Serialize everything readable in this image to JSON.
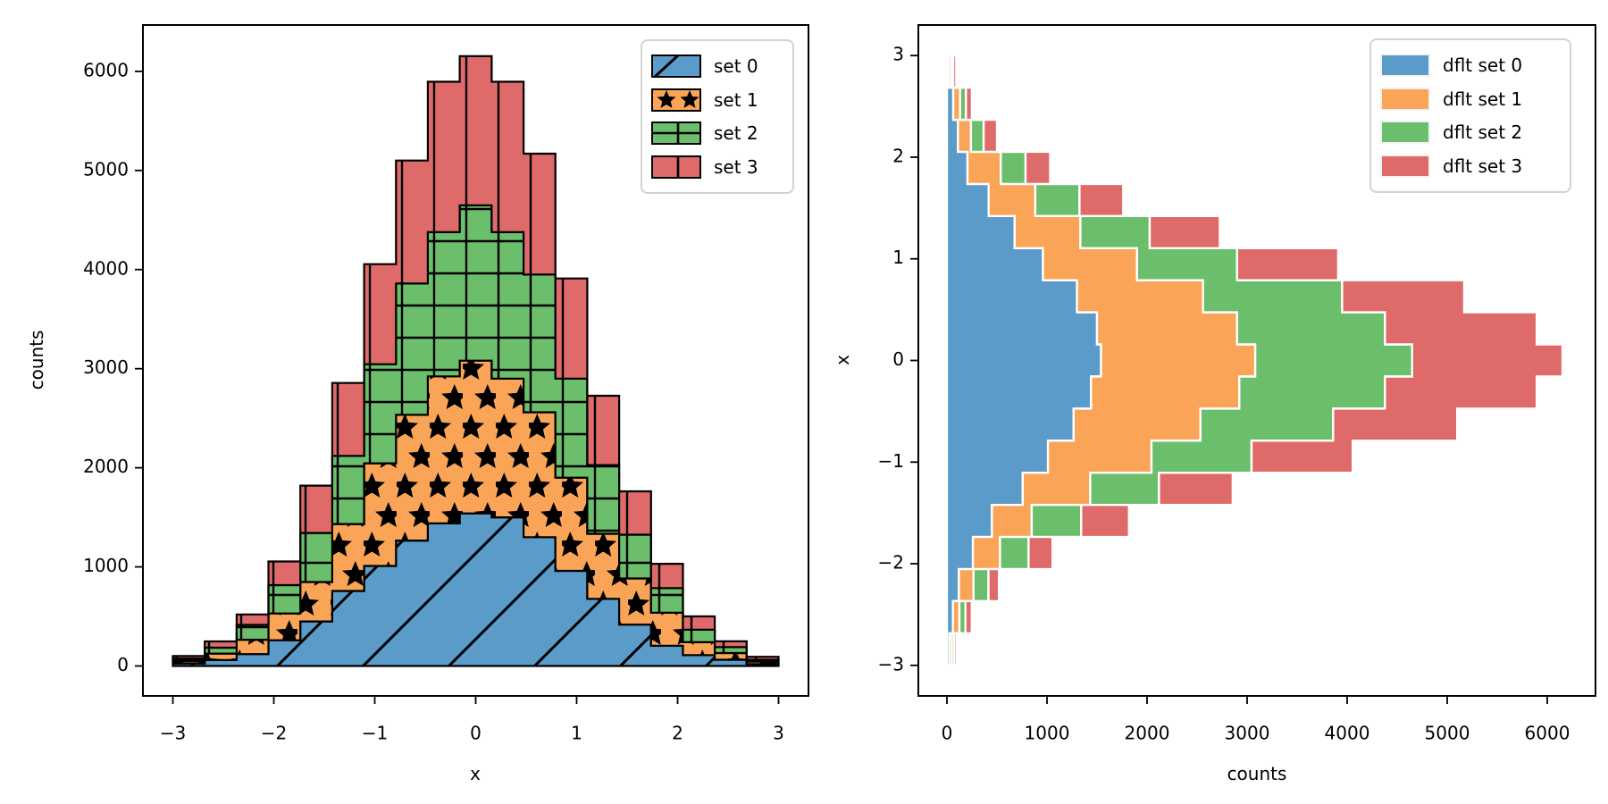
{
  "figure": {
    "background": "#ffffff"
  },
  "chart_data": [
    {
      "type": "bar",
      "subtype": "stacked-step-histogram",
      "orientation": "vertical",
      "title": "",
      "xlabel": "x",
      "ylabel": "counts",
      "grid": false,
      "xlim": [
        -3.3,
        3.3
      ],
      "ylim": [
        -302,
        6468
      ],
      "bin_edges": [
        -3.0,
        -2.684,
        -2.368,
        -2.053,
        -1.737,
        -1.421,
        -1.105,
        -0.789,
        -0.474,
        -0.158,
        0.158,
        0.474,
        0.789,
        1.105,
        1.421,
        1.737,
        2.053,
        2.368,
        2.684,
        3.0
      ],
      "xticks": {
        "values": [
          -3,
          -2,
          -1,
          0,
          1,
          2,
          3
        ],
        "labels": [
          "−3",
          "−2",
          "−1",
          "0",
          "1",
          "2",
          "3"
        ]
      },
      "yticks": {
        "values": [
          0,
          1000,
          2000,
          3000,
          4000,
          5000,
          6000
        ],
        "labels": [
          "0",
          "1000",
          "2000",
          "3000",
          "4000",
          "5000",
          "6000"
        ]
      },
      "edge_color": "#000000",
      "legend": {
        "position": "upper right",
        "labels": [
          "set 0",
          "set 1",
          "set 2",
          "set 3"
        ]
      },
      "series": [
        {
          "name": "set 0",
          "color": "#5B9BC9",
          "hatch": "/",
          "values": [
            25,
            60,
            120,
            260,
            450,
            757,
            1010,
            1266,
            1440,
            1540,
            1500,
            1300,
            960,
            677,
            417,
            205,
            110,
            63,
            20
          ]
        },
        {
          "name": "set 1",
          "color": "#FAA458",
          "hatch": "*",
          "values": [
            25,
            65,
            145,
            270,
            397,
            675,
            1035,
            1268,
            1482,
            1541,
            1400,
            1260,
            940,
            657,
            466,
            333,
            130,
            68,
            25
          ]
        },
        {
          "name": "set 2",
          "color": "#6BBE6B",
          "hatch": "+",
          "values": [
            25,
            60,
            150,
            286,
            495,
            688,
            1000,
            1326,
            1456,
            1568,
            1478,
            1390,
            1000,
            693,
            442,
            248,
            127,
            59,
            18
          ]
        },
        {
          "name": "set 3",
          "color": "#DF6A6A",
          "hatch": "|",
          "values": [
            25,
            63,
            105,
            239,
            478,
            736,
            1010,
            1240,
            1517,
            1504,
            1517,
            1220,
            1010,
            700,
            437,
            245,
            133,
            59,
            30
          ]
        }
      ]
    },
    {
      "type": "bar",
      "subtype": "stacked-step-histogram",
      "orientation": "horizontal",
      "title": "",
      "xlabel": "counts",
      "ylabel": "x",
      "grid": false,
      "xlim": [
        -286,
        6482
      ],
      "ylim": [
        -3.3,
        3.3
      ],
      "bin_edges": [
        -3.0,
        -2.684,
        -2.368,
        -2.053,
        -1.737,
        -1.421,
        -1.105,
        -0.789,
        -0.474,
        -0.158,
        0.158,
        0.474,
        0.789,
        1.105,
        1.421,
        1.737,
        2.053,
        2.368,
        2.684,
        3.0
      ],
      "xticks": {
        "values": [
          0,
          1000,
          2000,
          3000,
          4000,
          5000,
          6000
        ],
        "labels": [
          "0",
          "1000",
          "2000",
          "3000",
          "4000",
          "5000",
          "6000"
        ]
      },
      "yticks": {
        "values": [
          -3,
          -2,
          -1,
          0,
          1,
          2,
          3
        ],
        "labels": [
          "−3",
          "−2",
          "−1",
          "0",
          "1",
          "2",
          "3"
        ]
      },
      "edge_color": "#ffffff",
      "legend": {
        "position": "upper right",
        "labels": [
          "dflt set 0",
          "dflt set 1",
          "dflt set 2",
          "dflt set 3"
        ]
      },
      "series": [
        {
          "name": "dflt set 0",
          "color": "#5B9BC9",
          "hatch": null,
          "values": [
            25,
            60,
            120,
            260,
            450,
            757,
            1010,
            1266,
            1440,
            1540,
            1500,
            1300,
            960,
            677,
            417,
            205,
            110,
            63,
            20
          ]
        },
        {
          "name": "dflt set 1",
          "color": "#FAA458",
          "hatch": null,
          "values": [
            25,
            65,
            145,
            270,
            397,
            675,
            1035,
            1268,
            1482,
            1541,
            1400,
            1260,
            940,
            657,
            466,
            333,
            130,
            68,
            25
          ]
        },
        {
          "name": "dflt set 2",
          "color": "#6BBE6B",
          "hatch": null,
          "values": [
            25,
            60,
            150,
            286,
            495,
            688,
            1000,
            1326,
            1456,
            1568,
            1478,
            1390,
            1000,
            693,
            442,
            248,
            127,
            59,
            18
          ]
        },
        {
          "name": "dflt set 3",
          "color": "#DF6A6A",
          "hatch": null,
          "values": [
            25,
            63,
            105,
            239,
            478,
            736,
            1010,
            1240,
            1517,
            1504,
            1517,
            1220,
            1010,
            700,
            437,
            245,
            133,
            59,
            30
          ]
        }
      ]
    }
  ]
}
